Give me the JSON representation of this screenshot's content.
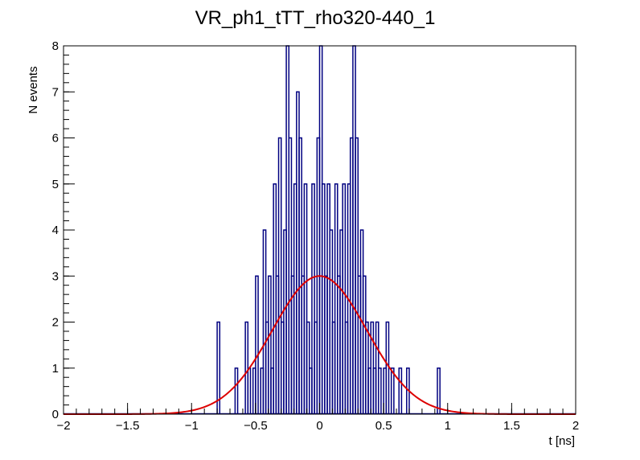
{
  "chart_data": {
    "type": "histogram",
    "title": "VR_ph1_tTT_rho320-440_1",
    "xlabel": "t [ns]",
    "ylabel": "N events",
    "xlim": [
      -2,
      2
    ],
    "ylim": [
      0,
      8
    ],
    "x_ticks": [
      "-2",
      "-1.5",
      "-1",
      "-0.5",
      "0",
      "0.5",
      "1",
      "1.5",
      "2"
    ],
    "y_ticks": [
      "0",
      "1",
      "2",
      "3",
      "4",
      "5",
      "6",
      "7",
      "8"
    ],
    "bin_width": 0.02,
    "bins": [
      {
        "x": -0.8,
        "y": 2
      },
      {
        "x": -0.78,
        "y": 0
      },
      {
        "x": -0.66,
        "y": 1
      },
      {
        "x": -0.64,
        "y": 0
      },
      {
        "x": -0.58,
        "y": 2
      },
      {
        "x": -0.56,
        "y": 1
      },
      {
        "x": -0.54,
        "y": 0
      },
      {
        "x": -0.52,
        "y": 1
      },
      {
        "x": -0.5,
        "y": 3
      },
      {
        "x": -0.48,
        "y": 0
      },
      {
        "x": -0.46,
        "y": 1
      },
      {
        "x": -0.44,
        "y": 4
      },
      {
        "x": -0.42,
        "y": 2
      },
      {
        "x": -0.4,
        "y": 3
      },
      {
        "x": -0.38,
        "y": 1
      },
      {
        "x": -0.36,
        "y": 5
      },
      {
        "x": -0.34,
        "y": 3
      },
      {
        "x": -0.32,
        "y": 6
      },
      {
        "x": -0.3,
        "y": 2
      },
      {
        "x": -0.28,
        "y": 4
      },
      {
        "x": -0.26,
        "y": 8
      },
      {
        "x": -0.24,
        "y": 6
      },
      {
        "x": -0.22,
        "y": 3
      },
      {
        "x": -0.2,
        "y": 5
      },
      {
        "x": -0.18,
        "y": 7
      },
      {
        "x": -0.16,
        "y": 6
      },
      {
        "x": -0.14,
        "y": 3
      },
      {
        "x": -0.12,
        "y": 5
      },
      {
        "x": -0.1,
        "y": 2
      },
      {
        "x": -0.08,
        "y": 1
      },
      {
        "x": -0.06,
        "y": 5
      },
      {
        "x": -0.04,
        "y": 2
      },
      {
        "x": -0.02,
        "y": 6
      },
      {
        "x": 0.0,
        "y": 8
      },
      {
        "x": 0.02,
        "y": 5
      },
      {
        "x": 0.04,
        "y": 3
      },
      {
        "x": 0.06,
        "y": 5
      },
      {
        "x": 0.08,
        "y": 4
      },
      {
        "x": 0.1,
        "y": 2
      },
      {
        "x": 0.12,
        "y": 5
      },
      {
        "x": 0.14,
        "y": 3
      },
      {
        "x": 0.16,
        "y": 4
      },
      {
        "x": 0.18,
        "y": 5
      },
      {
        "x": 0.2,
        "y": 2
      },
      {
        "x": 0.22,
        "y": 5
      },
      {
        "x": 0.24,
        "y": 6
      },
      {
        "x": 0.26,
        "y": 8
      },
      {
        "x": 0.28,
        "y": 6
      },
      {
        "x": 0.3,
        "y": 3
      },
      {
        "x": 0.32,
        "y": 4
      },
      {
        "x": 0.34,
        "y": 3
      },
      {
        "x": 0.36,
        "y": 2
      },
      {
        "x": 0.38,
        "y": 1
      },
      {
        "x": 0.4,
        "y": 2
      },
      {
        "x": 0.42,
        "y": 1
      },
      {
        "x": 0.44,
        "y": 2
      },
      {
        "x": 0.46,
        "y": 1
      },
      {
        "x": 0.48,
        "y": 0
      },
      {
        "x": 0.5,
        "y": 1
      },
      {
        "x": 0.52,
        "y": 2
      },
      {
        "x": 0.54,
        "y": 0
      },
      {
        "x": 0.56,
        "y": 1
      },
      {
        "x": 0.58,
        "y": 0
      },
      {
        "x": 0.62,
        "y": 1
      },
      {
        "x": 0.64,
        "y": 0
      },
      {
        "x": 0.68,
        "y": 1
      },
      {
        "x": 0.7,
        "y": 0
      },
      {
        "x": 0.92,
        "y": 1
      },
      {
        "x": 0.94,
        "y": 0
      }
    ],
    "fit": {
      "function": "gaussian",
      "amplitude": 3.0,
      "mean": 0.0,
      "sigma": 0.37
    },
    "colors": {
      "histogram": "#000080",
      "fit": "#dd0000",
      "frame": "#000000",
      "text": "#000000"
    },
    "grid": false,
    "legend": "none"
  }
}
